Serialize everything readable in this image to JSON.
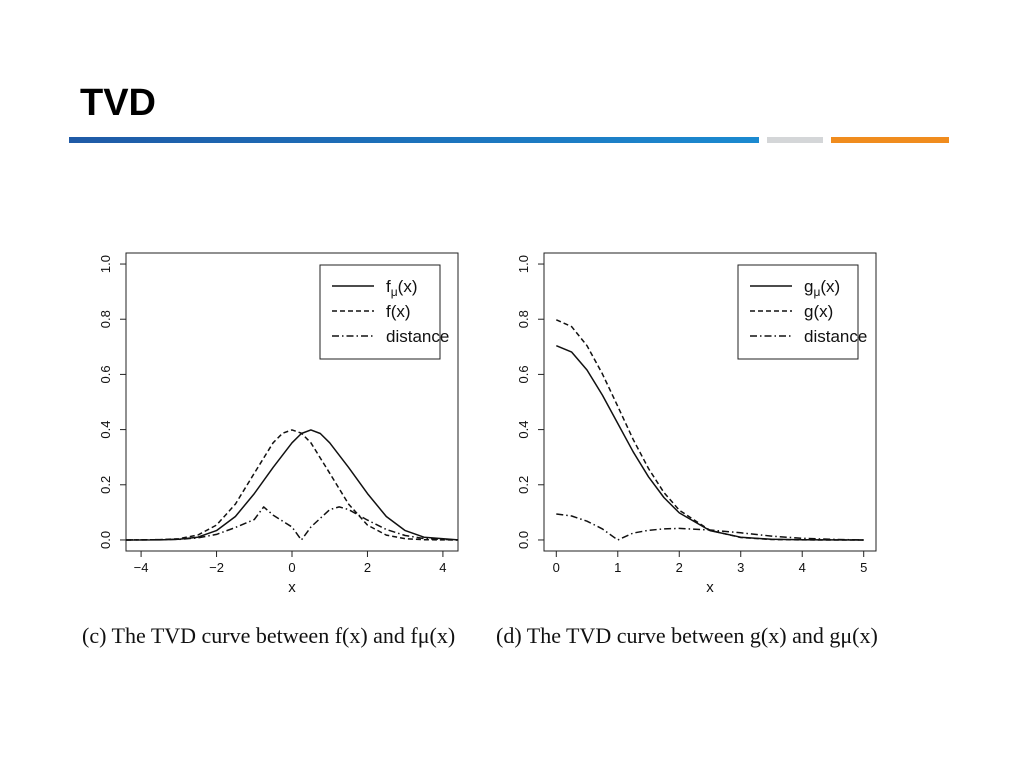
{
  "slide": {
    "title": "TVD"
  },
  "theme": {
    "rule_colors": [
      "#1f5aa6",
      "#d4d6d8",
      "#f08c1e"
    ]
  },
  "captions": [
    {
      "text": "(c) The TVD curve between f(x) and fμ(x)"
    },
    {
      "text": "(d) The TVD curve between g(x) and gμ(x)"
    }
  ],
  "chart_data": [
    {
      "type": "line",
      "title": "",
      "xlabel": "x",
      "ylabel": "",
      "xlim": [
        -4.4,
        4.4
      ],
      "ylim": [
        0,
        1.0
      ],
      "xticks": [
        -4,
        -2,
        0,
        2,
        4
      ],
      "xtick_labels": [
        "−4",
        "−2",
        "0",
        "2",
        "4"
      ],
      "yticks": [
        0.0,
        0.2,
        0.4,
        0.6,
        0.8,
        1.0
      ],
      "ytick_labels": [
        "0.0",
        "0.2",
        "0.4",
        "0.6",
        "0.8",
        "1.0"
      ],
      "legend_position": "top-right",
      "series": [
        {
          "name": "fμ(x)",
          "base": "f",
          "sub": "μ",
          "arg": "(x)",
          "style": "solid",
          "x": [
            -4.4,
            -3.5,
            -3.0,
            -2.5,
            -2.0,
            -1.5,
            -1.0,
            -0.5,
            0.0,
            0.25,
            0.5,
            0.75,
            1.0,
            1.5,
            2.0,
            2.5,
            3.0,
            3.5,
            4.4
          ],
          "y": [
            0.0,
            0.0004,
            0.0024,
            0.0099,
            0.034,
            0.085,
            0.168,
            0.263,
            0.352,
            0.386,
            0.399,
            0.386,
            0.352,
            0.263,
            0.168,
            0.085,
            0.034,
            0.0099,
            0.0002
          ]
        },
        {
          "name": "f(x)",
          "base": "f(x)",
          "sub": "",
          "arg": "",
          "style": "dashed",
          "x": [
            -4.4,
            -3.5,
            -3.0,
            -2.5,
            -2.0,
            -1.5,
            -1.0,
            -0.5,
            -0.25,
            0.0,
            0.25,
            0.5,
            1.0,
            1.5,
            2.0,
            2.5,
            3.0,
            3.5,
            4.4
          ],
          "y": [
            0.0,
            0.0009,
            0.0044,
            0.0175,
            0.054,
            0.13,
            0.242,
            0.352,
            0.387,
            0.399,
            0.387,
            0.352,
            0.242,
            0.13,
            0.054,
            0.0175,
            0.0044,
            0.0009,
            0.0
          ]
        },
        {
          "name": "distance",
          "base": "distance",
          "sub": "",
          "arg": "",
          "style": "dashdot",
          "x": [
            -4.4,
            -3.0,
            -2.5,
            -2.0,
            -1.5,
            -1.0,
            -0.75,
            -0.5,
            0.0,
            0.25,
            0.5,
            1.0,
            1.25,
            1.5,
            2.0,
            2.5,
            3.0,
            3.5,
            4.4
          ],
          "y": [
            0.0,
            0.002,
            0.0076,
            0.02,
            0.045,
            0.074,
            0.12,
            0.09,
            0.047,
            0.0,
            0.047,
            0.11,
            0.12,
            0.11,
            0.072,
            0.038,
            0.016,
            0.005,
            0.0
          ]
        }
      ]
    },
    {
      "type": "line",
      "title": "",
      "xlabel": "x",
      "ylabel": "",
      "xlim": [
        -0.2,
        5.2
      ],
      "ylim": [
        0,
        1.0
      ],
      "xticks": [
        0,
        1,
        2,
        3,
        4,
        5
      ],
      "xtick_labels": [
        "0",
        "1",
        "2",
        "3",
        "4",
        "5"
      ],
      "yticks": [
        0.0,
        0.2,
        0.4,
        0.6,
        0.8,
        1.0
      ],
      "ytick_labels": [
        "0.0",
        "0.2",
        "0.4",
        "0.6",
        "0.8",
        "1.0"
      ],
      "legend_position": "top-right",
      "series": [
        {
          "name": "gμ(x)",
          "base": "g",
          "sub": "μ",
          "arg": "(x)",
          "style": "solid",
          "x": [
            0.0,
            0.25,
            0.5,
            0.75,
            1.0,
            1.25,
            1.5,
            1.75,
            2.0,
            2.5,
            3.0,
            3.5,
            4.0,
            4.5,
            5.0
          ],
          "y": [
            0.704,
            0.681,
            0.616,
            0.525,
            0.422,
            0.32,
            0.229,
            0.154,
            0.098,
            0.034,
            0.0099,
            0.0024,
            0.0005,
            0.0001,
            0.0
          ]
        },
        {
          "name": "g(x)",
          "base": "g(x)",
          "sub": "",
          "arg": "",
          "style": "dashed",
          "x": [
            0.0,
            0.25,
            0.5,
            0.75,
            1.0,
            1.25,
            1.5,
            1.75,
            2.0,
            2.5,
            3.0,
            3.5,
            4.0,
            4.5,
            5.0
          ],
          "y": [
            0.798,
            0.773,
            0.704,
            0.602,
            0.484,
            0.365,
            0.259,
            0.172,
            0.108,
            0.035,
            0.0089,
            0.0017,
            0.0003,
            0.0,
            0.0
          ]
        },
        {
          "name": "distance",
          "base": "distance",
          "sub": "",
          "arg": "",
          "style": "dashdot",
          "x": [
            0.0,
            0.25,
            0.5,
            0.75,
            1.0,
            1.25,
            1.5,
            1.75,
            2.0,
            2.5,
            3.0,
            3.5,
            4.0,
            4.5,
            5.0
          ],
          "y": [
            0.094,
            0.087,
            0.068,
            0.04,
            0.0,
            0.025,
            0.035,
            0.04,
            0.042,
            0.036,
            0.026,
            0.014,
            0.006,
            0.002,
            0.0
          ]
        }
      ]
    }
  ]
}
